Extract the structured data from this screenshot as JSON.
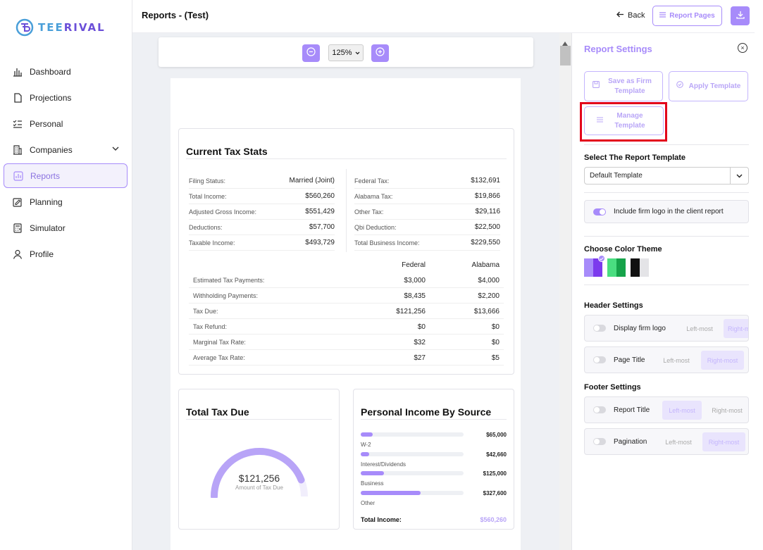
{
  "brand": {
    "name_a": "TEE",
    "name_b": "RIVAL"
  },
  "sidebar": {
    "items": [
      {
        "label": "Dashboard",
        "icon": "bar-chart-icon"
      },
      {
        "label": "Projections",
        "icon": "document-icon"
      },
      {
        "label": "Personal",
        "icon": "list-check-icon"
      },
      {
        "label": "Companies",
        "icon": "building-icon"
      },
      {
        "label": "Reports",
        "icon": "report-chart-icon"
      },
      {
        "label": "Planning",
        "icon": "edit-note-icon"
      },
      {
        "label": "Simulator",
        "icon": "calculator-icon"
      },
      {
        "label": "Profile",
        "icon": "user-icon"
      }
    ]
  },
  "topbar": {
    "title": "Reports  - (Test)",
    "back": "Back",
    "report_pages": "Report Pages"
  },
  "zoom": {
    "value": "125%"
  },
  "tax_stats": {
    "title": "Current Tax Stats",
    "left": [
      {
        "label": "Filing Status:",
        "value": "Married (Joint)"
      },
      {
        "label": "Total Income:",
        "value": "$560,260"
      },
      {
        "label": "Adjusted Gross Income:",
        "value": "$551,429"
      },
      {
        "label": "Deductions:",
        "value": "$57,700"
      },
      {
        "label": "Taxable Income:",
        "value": "$493,729"
      }
    ],
    "right": [
      {
        "label": "Federal Tax:",
        "value": "$132,691"
      },
      {
        "label": "Alabama Tax:",
        "value": "$19,866"
      },
      {
        "label": "Other Tax:",
        "value": "$29,116"
      },
      {
        "label": "Qbi Deduction:",
        "value": "$22,500"
      },
      {
        "label": "Total Business Income:",
        "value": "$229,550"
      }
    ],
    "col_federal": "Federal",
    "col_state": "Alabama",
    "bottom": [
      {
        "label": "Estimated Tax Payments:",
        "federal": "$3,000",
        "state": "$4,000"
      },
      {
        "label": "Withholding Payments:",
        "federal": "$8,435",
        "state": "$2,200"
      },
      {
        "label": "Tax Due:",
        "federal": "$121,256",
        "state": "$13,666"
      },
      {
        "label": "Tax Refund:",
        "federal": "$0",
        "state": "$0"
      },
      {
        "label": "Marginal Tax Rate:",
        "federal": "$32",
        "state": "$0"
      },
      {
        "label": "Average Tax Rate:",
        "federal": "$27",
        "state": "$5"
      }
    ]
  },
  "tax_due": {
    "title": "Total Tax Due",
    "value": "$121,256",
    "label": "Amount of Tax Due",
    "fraction": 0.88
  },
  "income": {
    "title": "Personal Income By Source",
    "items": [
      {
        "label": "W-2",
        "value": "$65,000",
        "fraction": 0.116
      },
      {
        "label": "Interest/Dividends",
        "value": "$42,660",
        "fraction": 0.076
      },
      {
        "label": "Business",
        "value": "$125,000",
        "fraction": 0.223
      },
      {
        "label": "Other",
        "value": "$327,600",
        "fraction": 0.585
      }
    ],
    "total_label": "Total Income:",
    "total_value": "$560,260"
  },
  "panel": {
    "title": "Report Settings",
    "save_template": "Save as Firm Template",
    "apply_template": "Apply Template",
    "manage_template": "Manage Template",
    "select_label": "Select The Report Template",
    "select_value": "Default Template",
    "logo_option": "Include firm logo in the client report",
    "color_label": "Choose Color Theme",
    "header_label": "Header Settings",
    "header_options": [
      {
        "label": "Display firm logo",
        "left": "Left-most",
        "right": "Right-most"
      },
      {
        "label": "Page Title",
        "left": "Left-most",
        "right": "Right-most"
      }
    ],
    "footer_label": "Footer Settings",
    "footer_options": [
      {
        "label": "Report Title",
        "left": "Left-most",
        "right": "Right-most"
      },
      {
        "label": "Pagination",
        "left": "Left-most",
        "right": "Right-most"
      }
    ],
    "themes": [
      [
        "#a78bfa",
        "#7c3aed"
      ],
      [
        "#4ade80",
        "#16a34a"
      ],
      [
        "#111111",
        "#e4e4e7"
      ]
    ]
  }
}
